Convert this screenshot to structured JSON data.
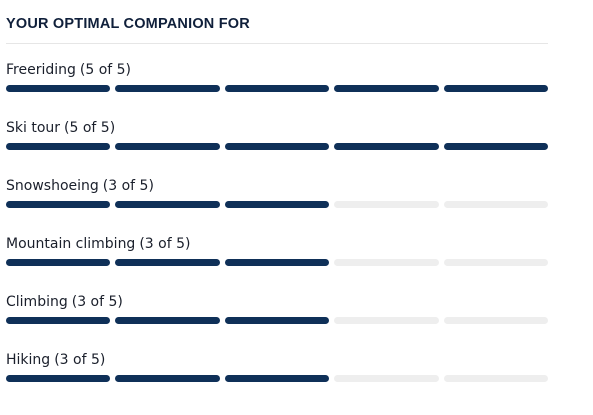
{
  "title": "YOUR OPTIMAL COMPANION FOR",
  "colors": {
    "filled": "#0f3058",
    "empty": "#eeeeee"
  },
  "activities": [
    {
      "name": "Freeriding",
      "count_text": "(5 of 5)",
      "rating": 5,
      "max": 5
    },
    {
      "name": "Ski tour",
      "count_text": "(5 of 5)",
      "rating": 5,
      "max": 5
    },
    {
      "name": "Snowshoeing",
      "count_text": "(3 of 5)",
      "rating": 3,
      "max": 5
    },
    {
      "name": "Mountain climbing",
      "count_text": "(3 of 5)",
      "rating": 3,
      "max": 5
    },
    {
      "name": "Climbing",
      "count_text": "(3 of 5)",
      "rating": 3,
      "max": 5
    },
    {
      "name": "Hiking",
      "count_text": "(3 of 5)",
      "rating": 3,
      "max": 5
    }
  ]
}
